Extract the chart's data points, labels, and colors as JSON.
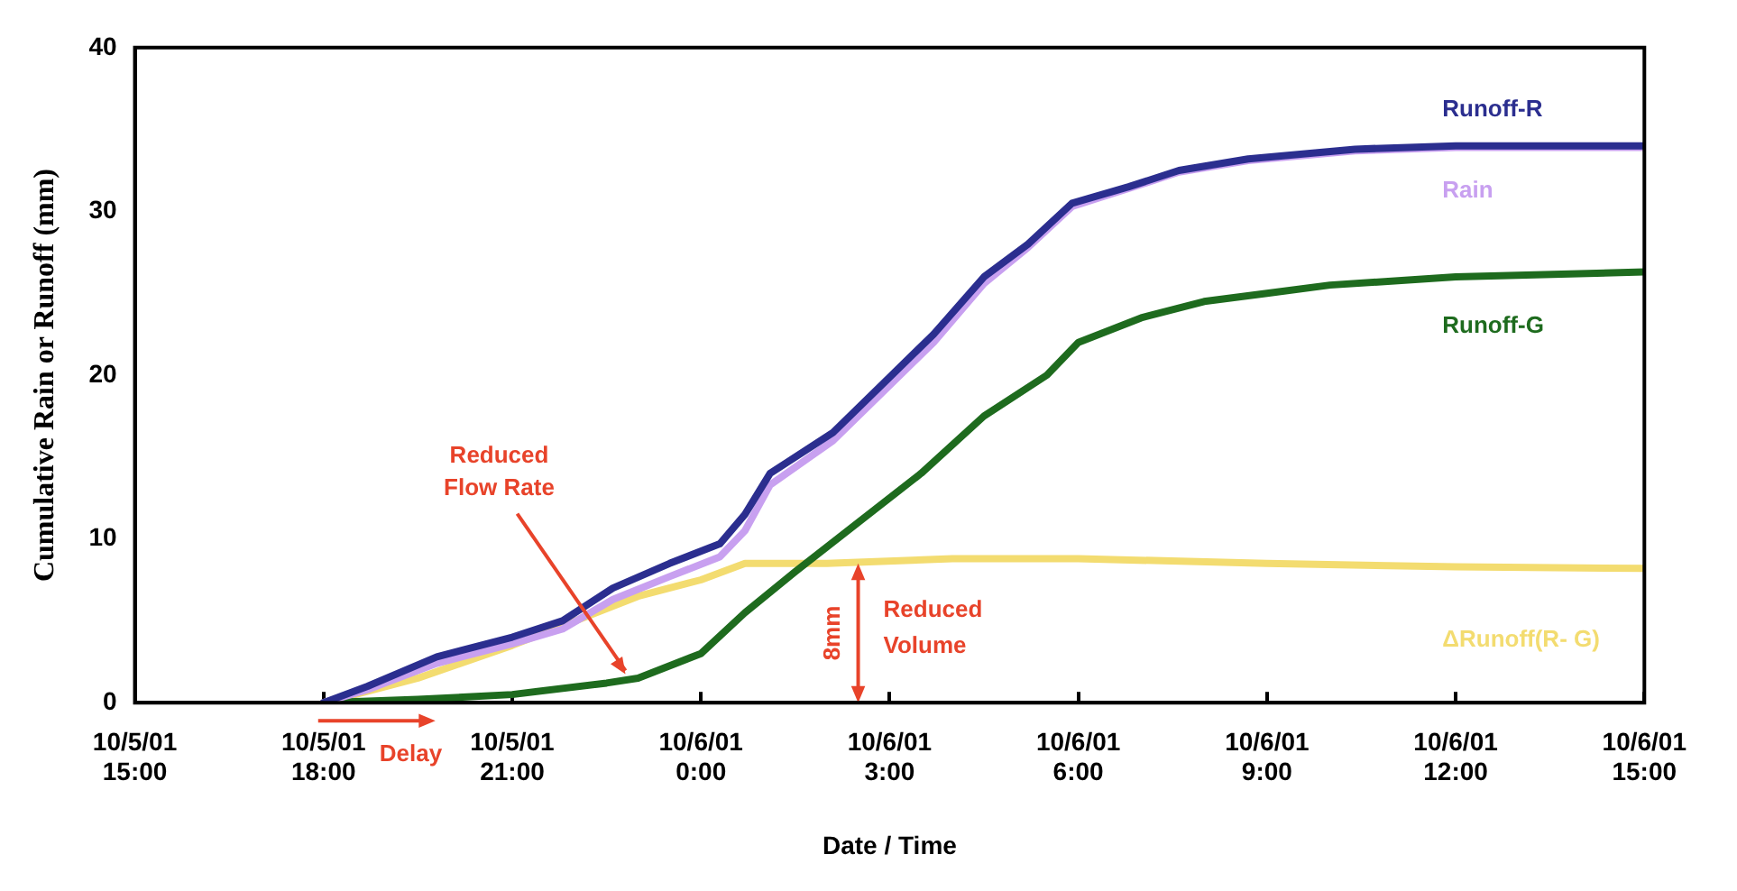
{
  "chart_data": {
    "type": "line",
    "xlabel": "Date / Time",
    "ylabel": "Cumulative Rain or Runoff (mm)",
    "xlim": [
      "--10-05T15:00",
      "--10-06T15:00"
    ],
    "xticks": [
      {
        "value": "--10-05T15:00",
        "label": "10/5/01 15:00"
      },
      {
        "value": "--10-05T18:00",
        "label": "10/5/01 18:00"
      },
      {
        "value": "--10-05T21:00",
        "label": "10/5/01 21:00"
      },
      {
        "value": "--10-06T00:00",
        "label": "10/6/01 0:00"
      },
      {
        "value": "--10-06T03:00",
        "label": "10/6/01 3:00"
      },
      {
        "value": "--10-06T06:00",
        "label": "10/6/01 6:00"
      },
      {
        "value": "--10-06T09:00",
        "label": "10/6/01 9:00"
      },
      {
        "value": "--10-06T12:00",
        "label": "10/6/01 12:00"
      },
      {
        "value": "--10-06T15:00",
        "label": "10/6/01 15:00"
      }
    ],
    "ylim": [
      0,
      40
    ],
    "yticks": [
      0,
      10,
      20,
      30,
      40
    ],
    "grid": false,
    "legend": false,
    "marker": "none",
    "line_style": "solid",
    "series": [
      {
        "name": "Runoff-R",
        "color": "#2b2e8f",
        "x": [
          "--10-05T18:00",
          "--10-05T18:42",
          "--10-05T19:48",
          "--10-05T21:00",
          "--10-05T21:48",
          "--10-05T22:36",
          "--10-05T23:30",
          "--10-06T00:18",
          "--10-06T00:42",
          "--10-06T01:06",
          "--10-06T02:06",
          "--10-06T02:54",
          "--10-06T03:42",
          "--10-06T04:30",
          "--10-06T05:12",
          "--10-06T05:54",
          "--10-06T06:48",
          "--10-06T07:36",
          "--10-06T08:42",
          "--10-06T10:24",
          "--10-06T12:00",
          "--10-06T15:00"
        ],
        "values": [
          0,
          1,
          2.8,
          4,
          5,
          7,
          8.5,
          9.7,
          11.5,
          14,
          16.5,
          19.5,
          22.5,
          26,
          28,
          30.5,
          31.5,
          32.5,
          33.2,
          33.8,
          34,
          34
        ]
      },
      {
        "name": "Rain",
        "color": "#c8a0f0",
        "x": [
          "--10-05T18:00",
          "--10-05T18:42",
          "--10-05T19:48",
          "--10-05T21:00",
          "--10-05T21:48",
          "--10-05T22:36",
          "--10-05T23:30",
          "--10-06T00:18",
          "--10-06T00:42",
          "--10-06T01:06",
          "--10-06T02:06",
          "--10-06T02:54",
          "--10-06T03:42",
          "--10-06T04:30",
          "--10-06T05:12",
          "--10-06T05:54",
          "--10-06T06:48",
          "--10-06T07:36",
          "--10-06T08:42",
          "--10-06T10:24",
          "--10-06T12:00",
          "--10-06T15:00"
        ],
        "values": [
          0,
          0.8,
          2.4,
          3.6,
          4.5,
          6.3,
          7.7,
          8.9,
          10.5,
          13.3,
          16,
          19,
          22,
          25.6,
          27.8,
          30.3,
          31.4,
          32.4,
          33.1,
          33.7,
          33.9,
          33.9
        ]
      },
      {
        "name": "Runoff-G",
        "color": "#1e6b1e",
        "x": [
          "--10-05T18:00",
          "--10-05T19:30",
          "--10-05T21:00",
          "--10-05T22:30",
          "--10-05T23:00",
          "--10-06T00:00",
          "--10-06T00:42",
          "--10-06T01:30",
          "--10-06T02:30",
          "--10-06T03:30",
          "--10-06T04:30",
          "--10-06T05:30",
          "--10-06T06:00",
          "--10-06T07:00",
          "--10-06T08:00",
          "--10-06T09:00",
          "--10-06T10:00",
          "--10-06T12:00",
          "--10-06T15:00"
        ],
        "values": [
          0,
          0.2,
          0.5,
          1.2,
          1.5,
          3,
          5.5,
          8,
          11,
          14,
          17.5,
          20,
          22,
          23.5,
          24.5,
          25,
          25.5,
          26,
          26.3
        ]
      },
      {
        "name": "ΔRunoff(R- G)",
        "color": "#f3dc70",
        "x": [
          "--10-05T18:00",
          "--10-05T19:30",
          "--10-05T21:00",
          "--10-05T22:00",
          "--10-05T23:00",
          "--10-06T00:00",
          "--10-06T00:42",
          "--10-06T02:00",
          "--10-06T04:00",
          "--10-06T06:00",
          "--10-06T09:00",
          "--10-06T12:00",
          "--10-06T15:00"
        ],
        "values": [
          0,
          1.5,
          3.5,
          5,
          6.5,
          7.5,
          8.5,
          8.5,
          8.8,
          8.8,
          8.5,
          8.3,
          8.2
        ]
      }
    ],
    "annotations": [
      {
        "text": "Reduced Flow Rate",
        "x": "--10-05T22:48",
        "y": 1.3
      },
      {
        "text": "Reduced Volume",
        "x": "--10-06T02:30",
        "y": 8.5
      },
      "8mm",
      {
        "text": "Delay",
        "x": "--10-05T18:00",
        "y": 0
      }
    ]
  }
}
